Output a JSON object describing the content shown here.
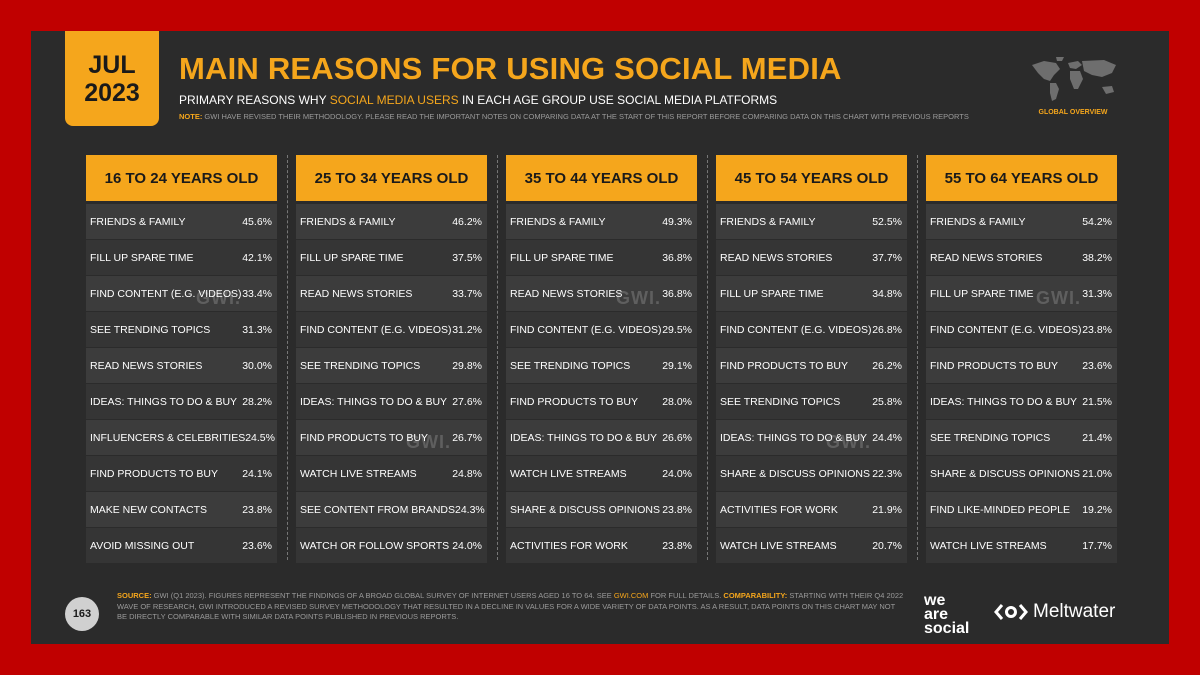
{
  "badge": {
    "month": "JUL",
    "year": "2023"
  },
  "title": "MAIN REASONS FOR USING SOCIAL MEDIA",
  "subtitle": {
    "pre": "PRIMARY REASONS WHY ",
    "highlight": "SOCIAL MEDIA USERS",
    "post": " IN EACH AGE GROUP USE SOCIAL MEDIA PLATFORMS"
  },
  "note": {
    "label": "NOTE:",
    "text": " GWI HAVE REVISED THEIR METHODOLOGY. PLEASE READ THE IMPORTANT NOTES ON COMPARING DATA AT THE START OF THIS REPORT BEFORE COMPARING DATA ON THIS CHART WITH PREVIOUS REPORTS"
  },
  "global_overview": "GLOBAL OVERVIEW",
  "watermark": "GWI.",
  "page_number": "163",
  "source": {
    "label1": "SOURCE:",
    "text1": " GWI (Q1 2023). FIGURES REPRESENT THE FINDINGS OF A BROAD GLOBAL SURVEY OF INTERNET USERS AGED 16 TO 64. SEE ",
    "link": "GWI.COM",
    "text2": " FOR FULL DETAILS. ",
    "label2": "COMPARABILITY:",
    "text3": " STARTING WITH THEIR Q4 2022 WAVE OF RESEARCH, GWI INTRODUCED A REVISED SURVEY METHODOLOGY THAT RESULTED IN A DECLINE IN VALUES FOR A WIDE VARIETY OF DATA POINTS. AS A RESULT, DATA POINTS ON THIS CHART MAY NOT BE DIRECTLY COMPARABLE WITH SIMILAR DATA POINTS PUBLISHED IN PREVIOUS REPORTS."
  },
  "logos": {
    "we_are_social": [
      "we",
      "are",
      "social"
    ],
    "meltwater": "Meltwater"
  },
  "colors": {
    "accent": "#f5a61c",
    "background": "#2b2b2b",
    "frame": "#c00000"
  },
  "chart_data": {
    "type": "table",
    "groups": [
      {
        "name": "16 TO 24 YEARS OLD",
        "rows": [
          {
            "label": "FRIENDS & FAMILY",
            "value": "45.6%"
          },
          {
            "label": "FILL UP SPARE TIME",
            "value": "42.1%"
          },
          {
            "label": "FIND CONTENT (E.G. VIDEOS)",
            "value": "33.4%"
          },
          {
            "label": "SEE TRENDING TOPICS",
            "value": "31.3%"
          },
          {
            "label": "READ NEWS STORIES",
            "value": "30.0%"
          },
          {
            "label": "IDEAS: THINGS TO DO & BUY",
            "value": "28.2%"
          },
          {
            "label": "INFLUENCERS & CELEBRITIES",
            "value": "24.5%"
          },
          {
            "label": "FIND PRODUCTS TO BUY",
            "value": "24.1%"
          },
          {
            "label": "MAKE NEW CONTACTS",
            "value": "23.8%"
          },
          {
            "label": "AVOID MISSING OUT",
            "value": "23.6%"
          }
        ]
      },
      {
        "name": "25 TO 34 YEARS OLD",
        "rows": [
          {
            "label": "FRIENDS & FAMILY",
            "value": "46.2%"
          },
          {
            "label": "FILL UP SPARE TIME",
            "value": "37.5%"
          },
          {
            "label": "READ NEWS STORIES",
            "value": "33.7%"
          },
          {
            "label": "FIND CONTENT (E.G. VIDEOS)",
            "value": "31.2%"
          },
          {
            "label": "SEE TRENDING TOPICS",
            "value": "29.8%"
          },
          {
            "label": "IDEAS: THINGS TO DO & BUY",
            "value": "27.6%"
          },
          {
            "label": "FIND PRODUCTS TO BUY",
            "value": "26.7%"
          },
          {
            "label": "WATCH LIVE STREAMS",
            "value": "24.8%"
          },
          {
            "label": "SEE CONTENT FROM BRANDS",
            "value": "24.3%"
          },
          {
            "label": "WATCH OR FOLLOW SPORTS",
            "value": "24.0%"
          }
        ]
      },
      {
        "name": "35 TO 44 YEARS OLD",
        "rows": [
          {
            "label": "FRIENDS & FAMILY",
            "value": "49.3%"
          },
          {
            "label": "FILL UP SPARE TIME",
            "value": "36.8%"
          },
          {
            "label": "READ NEWS STORIES",
            "value": "36.8%"
          },
          {
            "label": "FIND CONTENT (E.G. VIDEOS)",
            "value": "29.5%"
          },
          {
            "label": "SEE TRENDING TOPICS",
            "value": "29.1%"
          },
          {
            "label": "FIND PRODUCTS TO BUY",
            "value": "28.0%"
          },
          {
            "label": "IDEAS: THINGS TO DO & BUY",
            "value": "26.6%"
          },
          {
            "label": "WATCH LIVE STREAMS",
            "value": "24.0%"
          },
          {
            "label": "SHARE & DISCUSS OPINIONS",
            "value": "23.8%"
          },
          {
            "label": "ACTIVITIES FOR WORK",
            "value": "23.8%"
          }
        ]
      },
      {
        "name": "45 TO 54 YEARS OLD",
        "rows": [
          {
            "label": "FRIENDS & FAMILY",
            "value": "52.5%"
          },
          {
            "label": "READ NEWS STORIES",
            "value": "37.7%"
          },
          {
            "label": "FILL UP SPARE TIME",
            "value": "34.8%"
          },
          {
            "label": "FIND CONTENT (E.G. VIDEOS)",
            "value": "26.8%"
          },
          {
            "label": "FIND PRODUCTS TO BUY",
            "value": "26.2%"
          },
          {
            "label": "SEE TRENDING TOPICS",
            "value": "25.8%"
          },
          {
            "label": "IDEAS: THINGS TO DO & BUY",
            "value": "24.4%"
          },
          {
            "label": "SHARE & DISCUSS OPINIONS",
            "value": "22.3%"
          },
          {
            "label": "ACTIVITIES FOR WORK",
            "value": "21.9%"
          },
          {
            "label": "WATCH LIVE STREAMS",
            "value": "20.7%"
          }
        ]
      },
      {
        "name": "55 TO 64 YEARS OLD",
        "rows": [
          {
            "label": "FRIENDS & FAMILY",
            "value": "54.2%"
          },
          {
            "label": "READ NEWS STORIES",
            "value": "38.2%"
          },
          {
            "label": "FILL UP SPARE TIME",
            "value": "31.3%"
          },
          {
            "label": "FIND CONTENT (E.G. VIDEOS)",
            "value": "23.8%"
          },
          {
            "label": "FIND PRODUCTS TO BUY",
            "value": "23.6%"
          },
          {
            "label": "IDEAS: THINGS TO DO & BUY",
            "value": "21.5%"
          },
          {
            "label": "SEE TRENDING TOPICS",
            "value": "21.4%"
          },
          {
            "label": "SHARE & DISCUSS OPINIONS",
            "value": "21.0%"
          },
          {
            "label": "FIND LIKE-MINDED PEOPLE",
            "value": "19.2%"
          },
          {
            "label": "WATCH LIVE STREAMS",
            "value": "17.7%"
          }
        ]
      }
    ]
  }
}
